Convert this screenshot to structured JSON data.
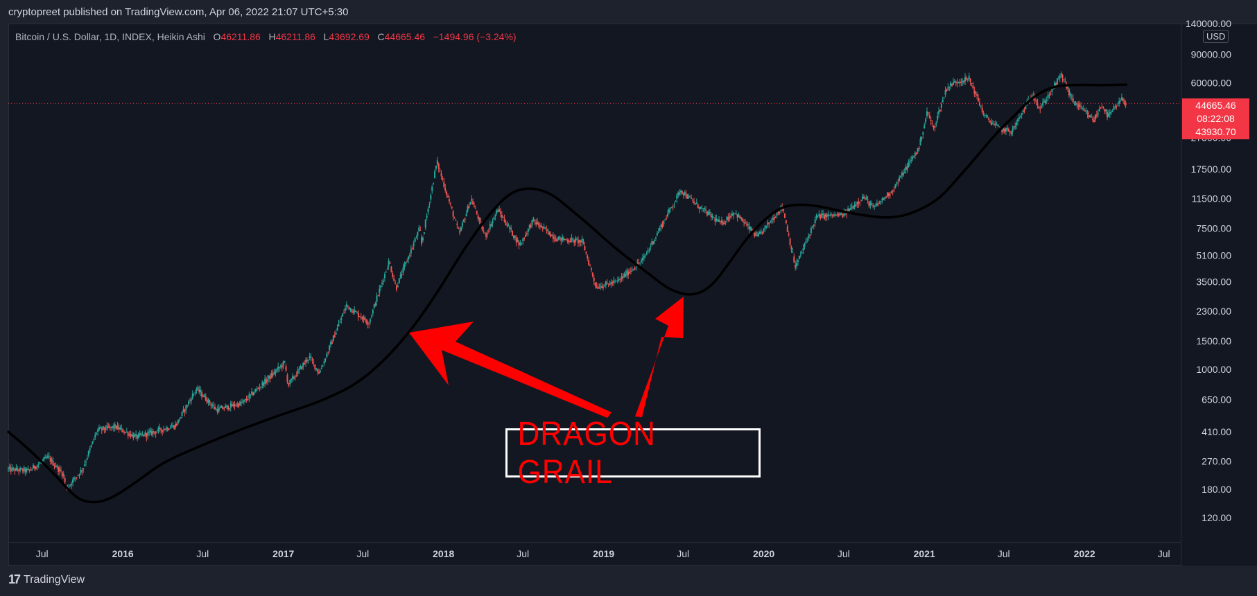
{
  "header": {
    "publisher_line": "cryptopreet published on TradingView.com, Apr 06, 2022 21:07 UTC+5:30"
  },
  "legend": {
    "symbol": "Bitcoin / U.S. Dollar, 1D, INDEX, Heikin Ashi",
    "o_label": "O",
    "o_value": "46211.86",
    "h_label": "H",
    "h_value": "46211.86",
    "l_label": "L",
    "l_value": "43692.69",
    "c_label": "C",
    "c_value": "44665.46",
    "change": "−1494.96 (−3.24%)"
  },
  "axis": {
    "currency": "USD"
  },
  "price_tag": {
    "last_price": "44665.46",
    "countdown": "08:22:08",
    "prev_price": "43930.70"
  },
  "annotation": {
    "text": "DRAGON GRAIL"
  },
  "footer": {
    "brand": "TradingView"
  },
  "colors": {
    "up": "#26a69a",
    "down": "#ef5350",
    "accent_red": "#ff0000",
    "line": "#000000"
  },
  "chart_data": {
    "type": "candlestick",
    "title": "Bitcoin / U.S. Dollar, 1D, INDEX, Heikin Ashi",
    "scale": "log",
    "ylim": [
      85,
      140000
    ],
    "xlim": [
      "2015-04-15",
      "2022-08-10"
    ],
    "y_ticks": [
      "140000.00",
      "90000.00",
      "60000.00",
      "27500.00",
      "17500.00",
      "11500.00",
      "7500.00",
      "5100.00",
      "3500.00",
      "2300.00",
      "1500.00",
      "1000.00",
      "650.00",
      "410.00",
      "270.00",
      "180.00",
      "120.00"
    ],
    "y_tick_values": [
      140000,
      90000,
      60000,
      27500,
      17500,
      11500,
      7500,
      5100,
      3500,
      2300,
      1500,
      1000,
      650,
      410,
      270,
      180,
      120
    ],
    "x_ticks": [
      {
        "label": "Jul",
        "date": "2015-07-01"
      },
      {
        "label": "2016",
        "date": "2016-01-01"
      },
      {
        "label": "Jul",
        "date": "2016-07-01"
      },
      {
        "label": "2017",
        "date": "2017-01-01"
      },
      {
        "label": "Jul",
        "date": "2017-07-01"
      },
      {
        "label": "2018",
        "date": "2018-01-01"
      },
      {
        "label": "Jul",
        "date": "2018-07-01"
      },
      {
        "label": "2019",
        "date": "2019-01-01"
      },
      {
        "label": "Jul",
        "date": "2019-07-01"
      },
      {
        "label": "2020",
        "date": "2020-01-01"
      },
      {
        "label": "Jul",
        "date": "2020-07-01"
      },
      {
        "label": "2021",
        "date": "2021-01-01"
      },
      {
        "label": "Jul",
        "date": "2021-07-01"
      },
      {
        "label": "2022",
        "date": "2022-01-01"
      },
      {
        "label": "Jul",
        "date": "2022-07-01"
      }
    ],
    "price_path": [
      [
        "2015-04-15",
        240
      ],
      [
        "2015-06-01",
        235
      ],
      [
        "2015-07-15",
        285
      ],
      [
        "2015-08-20",
        220
      ],
      [
        "2015-08-24",
        180
      ],
      [
        "2015-10-01",
        240
      ],
      [
        "2015-11-04",
        420
      ],
      [
        "2015-12-15",
        440
      ],
      [
        "2016-02-01",
        380
      ],
      [
        "2016-05-01",
        450
      ],
      [
        "2016-06-17",
        760
      ],
      [
        "2016-08-02",
        560
      ],
      [
        "2016-10-01",
        620
      ],
      [
        "2017-01-04",
        1100
      ],
      [
        "2017-01-12",
        800
      ],
      [
        "2017-03-01",
        1200
      ],
      [
        "2017-03-24",
        950
      ],
      [
        "2017-05-25",
        2500
      ],
      [
        "2017-07-15",
        1950
      ],
      [
        "2017-08-30",
        4700
      ],
      [
        "2017-09-15",
        3200
      ],
      [
        "2017-11-08",
        7500
      ],
      [
        "2017-11-12",
        6000
      ],
      [
        "2017-12-17",
        19500
      ],
      [
        "2018-02-06",
        6900
      ],
      [
        "2018-03-05",
        11500
      ],
      [
        "2018-04-06",
        6700
      ],
      [
        "2018-05-05",
        9800
      ],
      [
        "2018-06-24",
        5900
      ],
      [
        "2018-07-24",
        8400
      ],
      [
        "2018-09-15",
        6500
      ],
      [
        "2018-11-14",
        6200
      ],
      [
        "2018-12-15",
        3250
      ],
      [
        "2019-02-01",
        3500
      ],
      [
        "2019-04-01",
        4800
      ],
      [
        "2019-05-15",
        8000
      ],
      [
        "2019-06-26",
        13000
      ],
      [
        "2019-08-01",
        10500
      ],
      [
        "2019-09-26",
        8000
      ],
      [
        "2019-10-26",
        9500
      ],
      [
        "2019-12-18",
        6600
      ],
      [
        "2020-02-13",
        10300
      ],
      [
        "2020-03-13",
        4300
      ],
      [
        "2020-05-01",
        8900
      ],
      [
        "2020-07-01",
        9100
      ],
      [
        "2020-08-15",
        11800
      ],
      [
        "2020-09-08",
        10000
      ],
      [
        "2020-10-21",
        13000
      ],
      [
        "2020-12-20",
        23800
      ],
      [
        "2021-01-08",
        40000
      ],
      [
        "2021-01-22",
        31000
      ],
      [
        "2021-02-21",
        56000
      ],
      [
        "2021-03-14",
        61000
      ],
      [
        "2021-04-14",
        63500
      ],
      [
        "2021-05-19",
        37000
      ],
      [
        "2021-06-22",
        31000
      ],
      [
        "2021-07-20",
        30000
      ],
      [
        "2021-09-06",
        52000
      ],
      [
        "2021-09-21",
        41000
      ],
      [
        "2021-11-10",
        67500
      ],
      [
        "2021-12-04",
        47000
      ],
      [
        "2022-01-22",
        35000
      ],
      [
        "2022-02-10",
        44000
      ],
      [
        "2022-02-24",
        37000
      ],
      [
        "2022-03-28",
        47500
      ],
      [
        "2022-04-06",
        44665
      ]
    ],
    "indicator_line": [
      [
        "2015-04-15",
        410
      ],
      [
        "2015-06-01",
        320
      ],
      [
        "2015-08-01",
        220
      ],
      [
        "2015-09-15",
        160
      ],
      [
        "2015-10-20",
        148
      ],
      [
        "2015-12-01",
        155
      ],
      [
        "2016-02-01",
        200
      ],
      [
        "2016-04-01",
        265
      ],
      [
        "2016-07-01",
        340
      ],
      [
        "2016-10-01",
        430
      ],
      [
        "2017-01-01",
        530
      ],
      [
        "2017-04-01",
        640
      ],
      [
        "2017-07-01",
        850
      ],
      [
        "2017-10-01",
        1500
      ],
      [
        "2017-12-15",
        2900
      ],
      [
        "2018-02-15",
        5500
      ],
      [
        "2018-04-15",
        9200
      ],
      [
        "2018-06-01",
        12500
      ],
      [
        "2018-07-15",
        13500
      ],
      [
        "2018-09-01",
        12500
      ],
      [
        "2018-10-15",
        10000
      ],
      [
        "2018-12-01",
        7800
      ],
      [
        "2019-02-01",
        5500
      ],
      [
        "2019-04-15",
        3900
      ],
      [
        "2019-06-01",
        3100
      ],
      [
        "2019-07-20",
        2850
      ],
      [
        "2019-09-01",
        3200
      ],
      [
        "2019-10-15",
        4600
      ],
      [
        "2019-12-01",
        7000
      ],
      [
        "2020-02-01",
        10000
      ],
      [
        "2020-03-15",
        10600
      ],
      [
        "2020-05-01",
        10400
      ],
      [
        "2020-07-01",
        9500
      ],
      [
        "2020-09-01",
        8900
      ],
      [
        "2020-10-15",
        8700
      ],
      [
        "2020-12-01",
        9200
      ],
      [
        "2021-02-01",
        11200
      ],
      [
        "2021-03-15",
        15000
      ],
      [
        "2021-05-01",
        21000
      ],
      [
        "2021-06-15",
        29500
      ],
      [
        "2021-08-01",
        39000
      ],
      [
        "2021-09-01",
        48000
      ],
      [
        "2021-10-15",
        56500
      ],
      [
        "2021-12-01",
        58500
      ],
      [
        "2022-02-01",
        58000
      ],
      [
        "2022-04-06",
        58500
      ]
    ],
    "last_price_line": 44665.46
  }
}
